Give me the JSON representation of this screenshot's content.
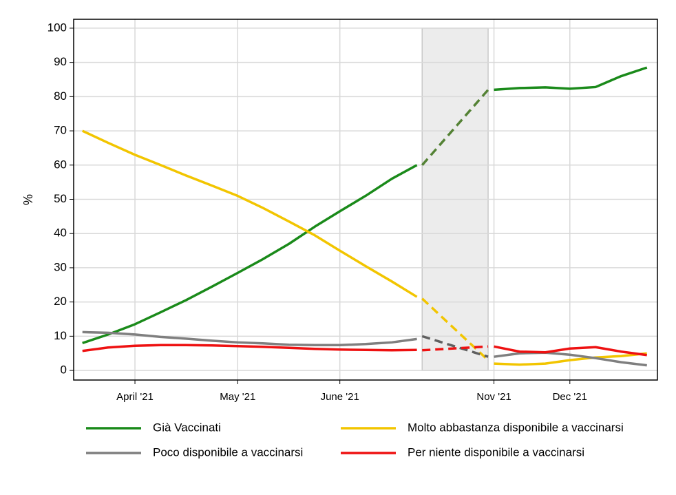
{
  "chart_data": {
    "type": "line",
    "y_label": "%",
    "x": [
      1.5,
      5.9,
      10.5,
      14.9,
      19.2,
      23.7,
      28.1,
      32.4,
      36.9,
      41.3,
      45.6,
      50.0,
      54.5,
      58.8,
      59.7,
      71.0,
      72.0,
      76.4,
      80.8,
      85.0,
      89.4,
      93.8,
      98.2
    ],
    "xlim": [
      0,
      100
    ],
    "xticks": [
      {
        "value": 10.5,
        "label": "April '21"
      },
      {
        "value": 28.1,
        "label": "May '21"
      },
      {
        "value": 45.6,
        "label": "June '21"
      },
      {
        "value": 72.0,
        "label": "Nov '21"
      },
      {
        "value": 85.0,
        "label": "Dec '21"
      }
    ],
    "ylim": [
      -2.8,
      102.6
    ],
    "yticks": [
      0,
      10,
      20,
      30,
      40,
      50,
      60,
      70,
      80,
      90,
      100
    ],
    "grid": true,
    "shaded_region": {
      "x": [
        59.7,
        71.0
      ],
      "color": "#ececec"
    },
    "legend": "bottom",
    "series": [
      {
        "name": "Già Vaccinati",
        "color": "#1a8a1a",
        "dash_color": "#548235",
        "values": [
          8,
          10.5,
          13.5,
          17,
          20.5,
          24.5,
          28.5,
          32.5,
          37,
          42,
          46.5,
          51,
          56,
          60,
          60,
          82,
          82,
          82.5,
          82.7,
          82.3,
          82.8,
          86,
          88.5
        ]
      },
      {
        "name": "Molto abbastanza disponibile a vaccinarsi",
        "color": "#f2c500",
        "dash_color": "#f2c500",
        "values": [
          70,
          66.5,
          63,
          60,
          57,
          54,
          51,
          47.5,
          43.5,
          39.5,
          35,
          30.5,
          26,
          21.5,
          21,
          3,
          2,
          1.7,
          2,
          3,
          3.8,
          4.2,
          5
        ]
      },
      {
        "name": "Poco disponibile a vaccinarsi",
        "color": "#7f7f7f",
        "dash_color": "#606060",
        "values": [
          11.2,
          11,
          10.5,
          9.8,
          9.3,
          8.7,
          8.2,
          7.9,
          7.5,
          7.4,
          7.4,
          7.7,
          8.2,
          9.2,
          10,
          4,
          4,
          5,
          5.2,
          4.6,
          3.6,
          2.4,
          1.5
        ]
      },
      {
        "name": "Per niente disponibile a vaccinarsi",
        "color": "#ee1111",
        "dash_color": "#ee1111",
        "values": [
          5.7,
          6.7,
          7.2,
          7.4,
          7.4,
          7.3,
          7.1,
          6.9,
          6.6,
          6.3,
          6.1,
          6,
          5.9,
          6,
          5.9,
          7,
          7,
          5.5,
          5.3,
          6.4,
          6.8,
          5.5,
          4.5
        ]
      }
    ]
  }
}
